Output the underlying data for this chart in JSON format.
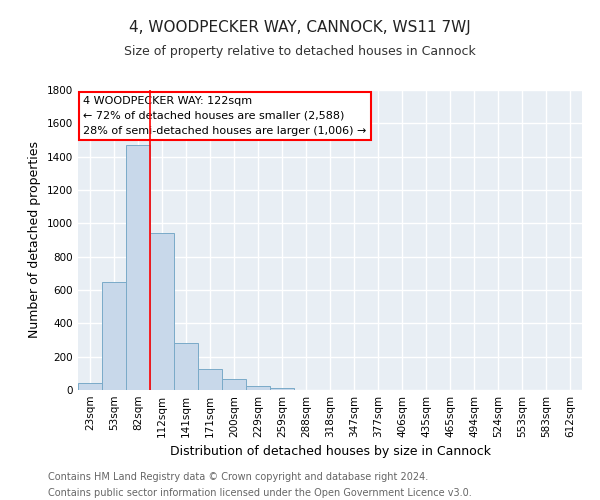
{
  "title": "4, WOODPECKER WAY, CANNOCK, WS11 7WJ",
  "subtitle": "Size of property relative to detached houses in Cannock",
  "xlabel": "Distribution of detached houses by size in Cannock",
  "ylabel": "Number of detached properties",
  "bar_labels": [
    "23sqm",
    "53sqm",
    "82sqm",
    "112sqm",
    "141sqm",
    "171sqm",
    "200sqm",
    "229sqm",
    "259sqm",
    "288sqm",
    "318sqm",
    "347sqm",
    "377sqm",
    "406sqm",
    "435sqm",
    "465sqm",
    "494sqm",
    "524sqm",
    "553sqm",
    "583sqm",
    "612sqm"
  ],
  "bar_values": [
    40,
    650,
    1470,
    940,
    285,
    125,
    65,
    22,
    10,
    0,
    0,
    0,
    0,
    0,
    0,
    0,
    0,
    0,
    0,
    0,
    0
  ],
  "bar_color": "#c8d8ea",
  "bar_edge_color": "#7aaac8",
  "bar_width": 1.0,
  "vline_x": 3.0,
  "vline_color": "red",
  "annotation_text": "4 WOODPECKER WAY: 122sqm\n← 72% of detached houses are smaller (2,588)\n28% of semi-detached houses are larger (1,006) →",
  "annotation_box_color": "white",
  "annotation_box_edge_color": "red",
  "ylim": [
    0,
    1800
  ],
  "yticks": [
    0,
    200,
    400,
    600,
    800,
    1000,
    1200,
    1400,
    1600,
    1800
  ],
  "footer_line1": "Contains HM Land Registry data © Crown copyright and database right 2024.",
  "footer_line2": "Contains public sector information licensed under the Open Government Licence v3.0.",
  "plot_bg_color": "#e8eef4",
  "fig_bg_color": "#ffffff",
  "grid_color": "white",
  "title_fontsize": 11,
  "subtitle_fontsize": 9,
  "axis_label_fontsize": 9,
  "tick_fontsize": 7.5,
  "footer_fontsize": 7,
  "annotation_fontsize": 8
}
